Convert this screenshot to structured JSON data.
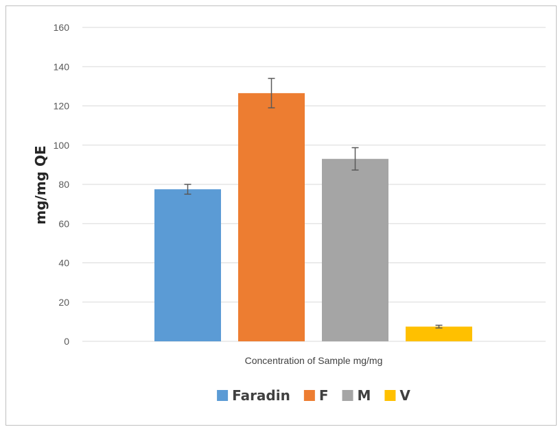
{
  "chart_data": {
    "type": "bar",
    "title": "",
    "xlabel": "Concentration of Sample mg/mg",
    "ylabel": "mg/mg QE",
    "ylim": [
      0,
      160
    ],
    "yticks": [
      0,
      20,
      40,
      60,
      80,
      100,
      120,
      140,
      160
    ],
    "grid": true,
    "legend_position": "bottom",
    "categories": [
      "Concentration of Sample mg/mg"
    ],
    "series": [
      {
        "name": "Faradin",
        "values": [
          77.5
        ],
        "error": [
          2.5
        ],
        "color": "#5b9bd5"
      },
      {
        "name": "F",
        "values": [
          126.5
        ],
        "error": [
          7.5
        ],
        "color": "#ed7d31"
      },
      {
        "name": "M",
        "values": [
          93
        ],
        "error": [
          5.7
        ],
        "color": "#a5a5a5"
      },
      {
        "name": "V",
        "values": [
          7.5
        ],
        "error": [
          0.7
        ],
        "color": "#ffc000"
      }
    ]
  }
}
